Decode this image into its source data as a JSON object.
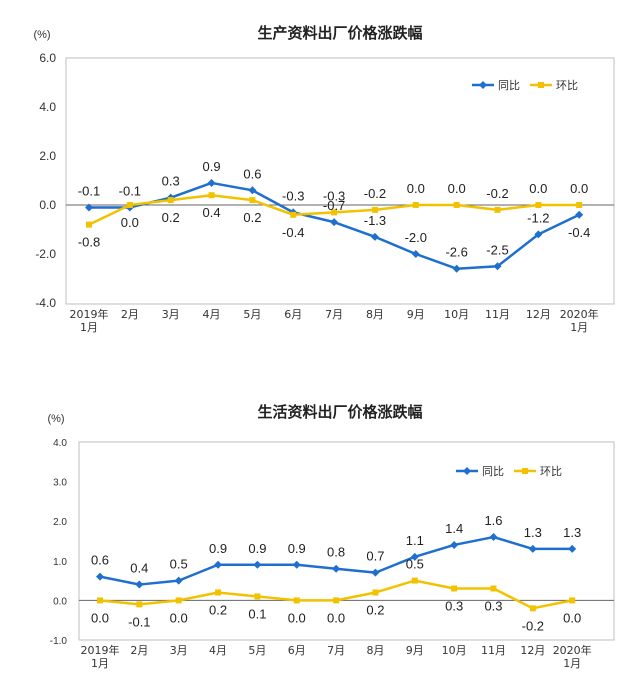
{
  "colors": {
    "yoy": "#1f6fcf",
    "mom": "#f2c200",
    "axis": "#666666",
    "frame": "#bfbfbf"
  },
  "chart_data": [
    {
      "type": "line",
      "title": "生产资料出厂价格涨跌幅",
      "unit": "(%)",
      "categories": [
        "2019年\n1月",
        "2月",
        "3月",
        "4月",
        "5月",
        "6月",
        "7月",
        "8月",
        "9月",
        "10月",
        "11月",
        "12月",
        "2020年\n1月"
      ],
      "ylim": [
        -4.0,
        6.0
      ],
      "yticks": [
        "6.0",
        "4.0",
        "2.0",
        "0.0",
        "-2.0",
        "-4.0"
      ],
      "ytick_values": [
        6,
        4,
        2,
        0,
        -2,
        -4
      ],
      "grid": false,
      "legend": "top-right",
      "series": [
        {
          "name": "同比",
          "values": [
            -0.1,
            -0.1,
            0.3,
            0.9,
            0.6,
            -0.3,
            -0.7,
            -1.3,
            -2.0,
            -2.6,
            -2.5,
            -1.2,
            -0.4
          ]
        },
        {
          "name": "环比",
          "values": [
            -0.8,
            0.0,
            0.2,
            0.4,
            0.2,
            -0.4,
            -0.3,
            -0.2,
            0.0,
            0.0,
            -0.2,
            0.0,
            0.0
          ]
        }
      ]
    },
    {
      "type": "line",
      "title": "生活资料出厂价格涨跌幅",
      "unit": "(%)",
      "categories": [
        "2019年\n1月",
        "2月",
        "3月",
        "4月",
        "5月",
        "6月",
        "7月",
        "8月",
        "9月",
        "10月",
        "11月",
        "12月",
        "2020年\n1月"
      ],
      "ylim": [
        -1.0,
        4.0
      ],
      "yticks": [
        "4.0",
        "3.0",
        "2.0",
        "1.0",
        "0.0",
        "-1.0"
      ],
      "ytick_values": [
        4,
        3,
        2,
        1,
        0,
        -1
      ],
      "grid": false,
      "legend": "top-right",
      "series": [
        {
          "name": "同比",
          "values": [
            0.6,
            0.4,
            0.5,
            0.9,
            0.9,
            0.9,
            0.8,
            0.7,
            1.1,
            1.4,
            1.6,
            1.3,
            1.3
          ]
        },
        {
          "name": "环比",
          "values": [
            0.0,
            -0.1,
            0.0,
            0.2,
            0.1,
            0.0,
            0.0,
            0.2,
            0.5,
            0.3,
            0.3,
            -0.2,
            0.0
          ]
        }
      ]
    }
  ]
}
